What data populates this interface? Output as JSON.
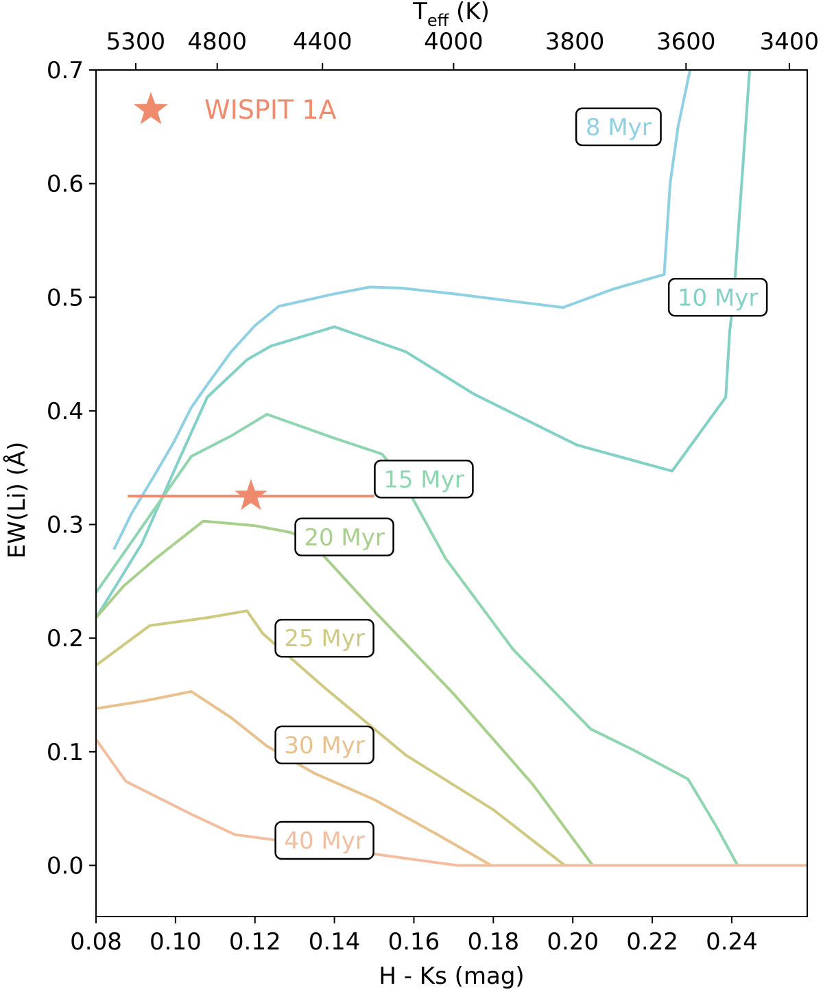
{
  "chart_data": {
    "type": "line",
    "xlabel": "H - Ks (mag)",
    "ylabel": "EW(Li) (Å)",
    "top_xlabel": "Teff (K)",
    "top_xlabel_main": "T",
    "top_xlabel_sub": "eff",
    "top_xlabel_unit": " (K)",
    "xlim": [
      0.08,
      0.259
    ],
    "ylim": [
      -0.045,
      0.7
    ],
    "xticks": [
      0.08,
      0.1,
      0.12,
      0.14,
      0.16,
      0.18,
      0.2,
      0.22,
      0.24
    ],
    "xtick_labels": [
      "0.08",
      "0.10",
      "0.12",
      "0.14",
      "0.16",
      "0.18",
      "0.20",
      "0.22",
      "0.24"
    ],
    "yticks": [
      0.0,
      0.1,
      0.2,
      0.3,
      0.4,
      0.5,
      0.6,
      0.7
    ],
    "ytick_labels": [
      "0.0",
      "0.1",
      "0.2",
      "0.3",
      "0.4",
      "0.5",
      "0.6",
      "0.7"
    ],
    "top_ticks": [
      {
        "x": 0.09,
        "label": "5300"
      },
      {
        "x": 0.1105,
        "label": "4800"
      },
      {
        "x": 0.137,
        "label": "4400"
      },
      {
        "x": 0.17,
        "label": "4000"
      },
      {
        "x": 0.2005,
        "label": "3800"
      },
      {
        "x": 0.2285,
        "label": "3600"
      },
      {
        "x": 0.2545,
        "label": "3400"
      }
    ],
    "series": [
      {
        "name": "8 Myr",
        "label": "8 Myr",
        "color": "#8fd1e3",
        "label_x": 0.2115,
        "label_y": 0.65,
        "x": [
          0.0845,
          0.089,
          0.095,
          0.0995,
          0.104,
          0.108,
          0.114,
          0.12,
          0.126,
          0.14,
          0.149,
          0.157,
          0.17,
          0.1975,
          0.21,
          0.223,
          0.2245,
          0.2265,
          0.2295
        ],
        "y": [
          0.278,
          0.31,
          0.345,
          0.372,
          0.403,
          0.423,
          0.452,
          0.475,
          0.492,
          0.503,
          0.509,
          0.508,
          0.503,
          0.491,
          0.507,
          0.52,
          0.6,
          0.65,
          0.7
        ]
      },
      {
        "name": "10 Myr",
        "label": "10 Myr",
        "color": "#82d0c6",
        "label_x": 0.2365,
        "label_y": 0.5,
        "x": [
          0.08,
          0.085,
          0.0915,
          0.1,
          0.108,
          0.118,
          0.124,
          0.14,
          0.158,
          0.175,
          0.201,
          0.225,
          0.2385,
          0.2395,
          0.2405,
          0.2415,
          0.2425,
          0.2445
        ],
        "y": [
          0.218,
          0.246,
          0.283,
          0.35,
          0.412,
          0.445,
          0.457,
          0.474,
          0.452,
          0.415,
          0.37,
          0.347,
          0.412,
          0.47,
          0.5,
          0.55,
          0.6,
          0.7
        ]
      },
      {
        "name": "15 Myr",
        "label": "15 Myr",
        "color": "#8ed5b0",
        "label_x": 0.1625,
        "label_y": 0.34,
        "x": [
          0.08,
          0.087,
          0.095,
          0.104,
          0.114,
          0.123,
          0.14,
          0.152,
          0.157,
          0.168,
          0.185,
          0.2045,
          0.215,
          0.229,
          0.236,
          0.2415
        ],
        "y": [
          0.24,
          0.275,
          0.315,
          0.36,
          0.378,
          0.397,
          0.376,
          0.362,
          0.34,
          0.27,
          0.19,
          0.12,
          0.102,
          0.076,
          0.035,
          0.0
        ]
      },
      {
        "name": "20 Myr",
        "label": "20 Myr",
        "color": "#a8d08c",
        "label_x": 0.1425,
        "label_y": 0.289,
        "x": [
          0.08,
          0.087,
          0.095,
          0.107,
          0.12,
          0.129,
          0.134,
          0.15,
          0.17,
          0.19,
          0.205
        ],
        "y": [
          0.218,
          0.246,
          0.27,
          0.303,
          0.299,
          0.293,
          0.285,
          0.224,
          0.151,
          0.071,
          0.0
        ]
      },
      {
        "name": "25 Myr",
        "label": "25 Myr",
        "color": "#cfc982",
        "label_x": 0.1375,
        "label_y": 0.2,
        "x": [
          0.08,
          0.0935,
          0.108,
          0.118,
          0.122,
          0.138,
          0.158,
          0.18,
          0.198
        ],
        "y": [
          0.176,
          0.211,
          0.218,
          0.224,
          0.204,
          0.155,
          0.097,
          0.049,
          0.0
        ]
      },
      {
        "name": "30 Myr",
        "label": "30 Myr",
        "color": "#e8c18e",
        "label_x": 0.1375,
        "label_y": 0.106,
        "x": [
          0.08,
          0.0925,
          0.104,
          0.114,
          0.123,
          0.135,
          0.15,
          0.166,
          0.1795
        ],
        "y": [
          0.138,
          0.145,
          0.153,
          0.13,
          0.105,
          0.081,
          0.058,
          0.027,
          0.0
        ]
      },
      {
        "name": "40 Myr",
        "label": "40 Myr",
        "color": "#f3bd9f",
        "label_x": 0.1375,
        "label_y": 0.022,
        "x": [
          0.08,
          0.0875,
          0.104,
          0.115,
          0.128,
          0.15,
          0.171,
          0.259
        ],
        "y": [
          0.111,
          0.074,
          0.045,
          0.027,
          0.021,
          0.01,
          0.0,
          0.0
        ]
      }
    ],
    "target": {
      "name": "WISPIT 1A",
      "x": 0.119,
      "y": 0.325,
      "x_err_low": 0.088,
      "x_err_high": 0.15,
      "color": "#ef8a6c"
    },
    "legend": {
      "label": "WISPIT 1A",
      "placement": "top-left"
    }
  }
}
